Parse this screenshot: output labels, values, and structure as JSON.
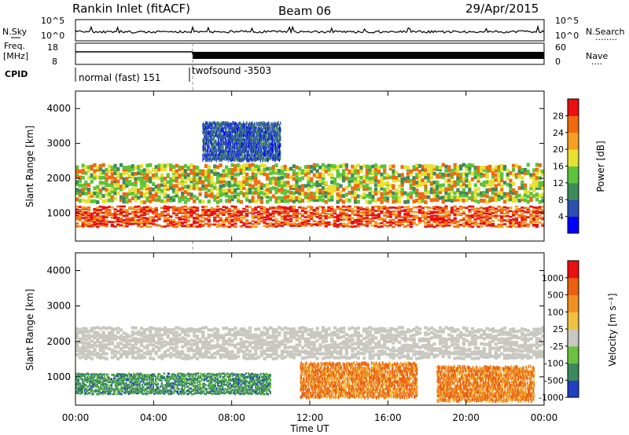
{
  "header": {
    "station": "Rankin Inlet (fitACF)",
    "beam": "Beam 06",
    "date": "29/Apr/2015"
  },
  "strip_panels": {
    "nsky_label": "N.Sky",
    "nsearch_label": "N.Search",
    "nsearch_dots": "........",
    "nsky_ticks": [
      "10^5",
      "10^0"
    ],
    "nsearch_ticks": [
      "10^5",
      "10^0"
    ],
    "freq_label": "Freq.",
    "freq_unit": "[MHz]",
    "freq_ticks": [
      "18",
      "8"
    ],
    "nave_label": "Nave",
    "nave_dots": "....",
    "nave_ticks": [
      "60",
      "0"
    ],
    "cpid_label": "CPID",
    "cpid_modes": [
      {
        "label": "normal (fast) 151",
        "start_hour": 0,
        "end_hour": 6
      },
      {
        "label": "twofsound -3503",
        "start_hour": 6,
        "end_hour": 24
      }
    ]
  },
  "chart_data": [
    {
      "type": "heatmap",
      "panel": "power",
      "xlabel": "",
      "ylabel": "Slant Range [km]",
      "xlim_hours": [
        0,
        24
      ],
      "ylim": [
        200,
        4500
      ],
      "yticks": [
        "1000",
        "2000",
        "3000",
        "4000"
      ],
      "colorbar": {
        "label": "Power [dB]",
        "ticks": [
          "28",
          "24",
          "20",
          "16",
          "12",
          "8",
          "4"
        ],
        "colors": [
          "#0000ff",
          "#2a4fb0",
          "#3f8a5a",
          "#5cc43a",
          "#e8e030",
          "#f5a020",
          "#f06a10",
          "#e81010"
        ]
      },
      "echo_bands": [
        {
          "start_hour": 0.0,
          "end_hour": 24.0,
          "range_low_km": 600,
          "range_high_km": 1200,
          "level": "high"
        },
        {
          "start_hour": 0.0,
          "end_hour": 24.0,
          "range_low_km": 1300,
          "range_high_km": 2400,
          "level": "medium"
        },
        {
          "start_hour": 6.5,
          "end_hour": 10.5,
          "range_low_km": 2500,
          "range_high_km": 3600,
          "level": "low"
        }
      ]
    },
    {
      "type": "heatmap",
      "panel": "velocity",
      "xlabel": "Time UT",
      "ylabel": "Slant Range [km]",
      "xlim_hours": [
        0,
        24
      ],
      "ylim": [
        200,
        4500
      ],
      "yticks": [
        "1000",
        "2000",
        "3000",
        "4000"
      ],
      "xticks": [
        "00:00",
        "04:00",
        "08:00",
        "12:00",
        "16:00",
        "20:00",
        "00:00"
      ],
      "colorbar": {
        "label": "Velocity [m s⁻¹]",
        "ticks": [
          "1000",
          "500",
          "100",
          "25",
          "-25",
          "-100",
          "-500",
          "-1000"
        ],
        "colors": [
          "#2040c0",
          "#3a8a5a",
          "#6cc040",
          "#c8c8c0",
          "#f0c040",
          "#f09020",
          "#e86010",
          "#e81010"
        ]
      },
      "echo_bands": [
        {
          "start_hour": 0.0,
          "end_hour": 24.0,
          "range_low_km": 1500,
          "range_high_km": 2400,
          "level": "ground-scatter"
        },
        {
          "start_hour": 0.0,
          "end_hour": 10.0,
          "range_low_km": 500,
          "range_high_km": 1100,
          "level": "positive"
        },
        {
          "start_hour": 11.5,
          "end_hour": 17.5,
          "range_low_km": 400,
          "range_high_km": 1400,
          "level": "negative"
        },
        {
          "start_hour": 18.5,
          "end_hour": 23.5,
          "range_low_km": 300,
          "range_high_km": 1300,
          "level": "negative"
        }
      ]
    }
  ]
}
